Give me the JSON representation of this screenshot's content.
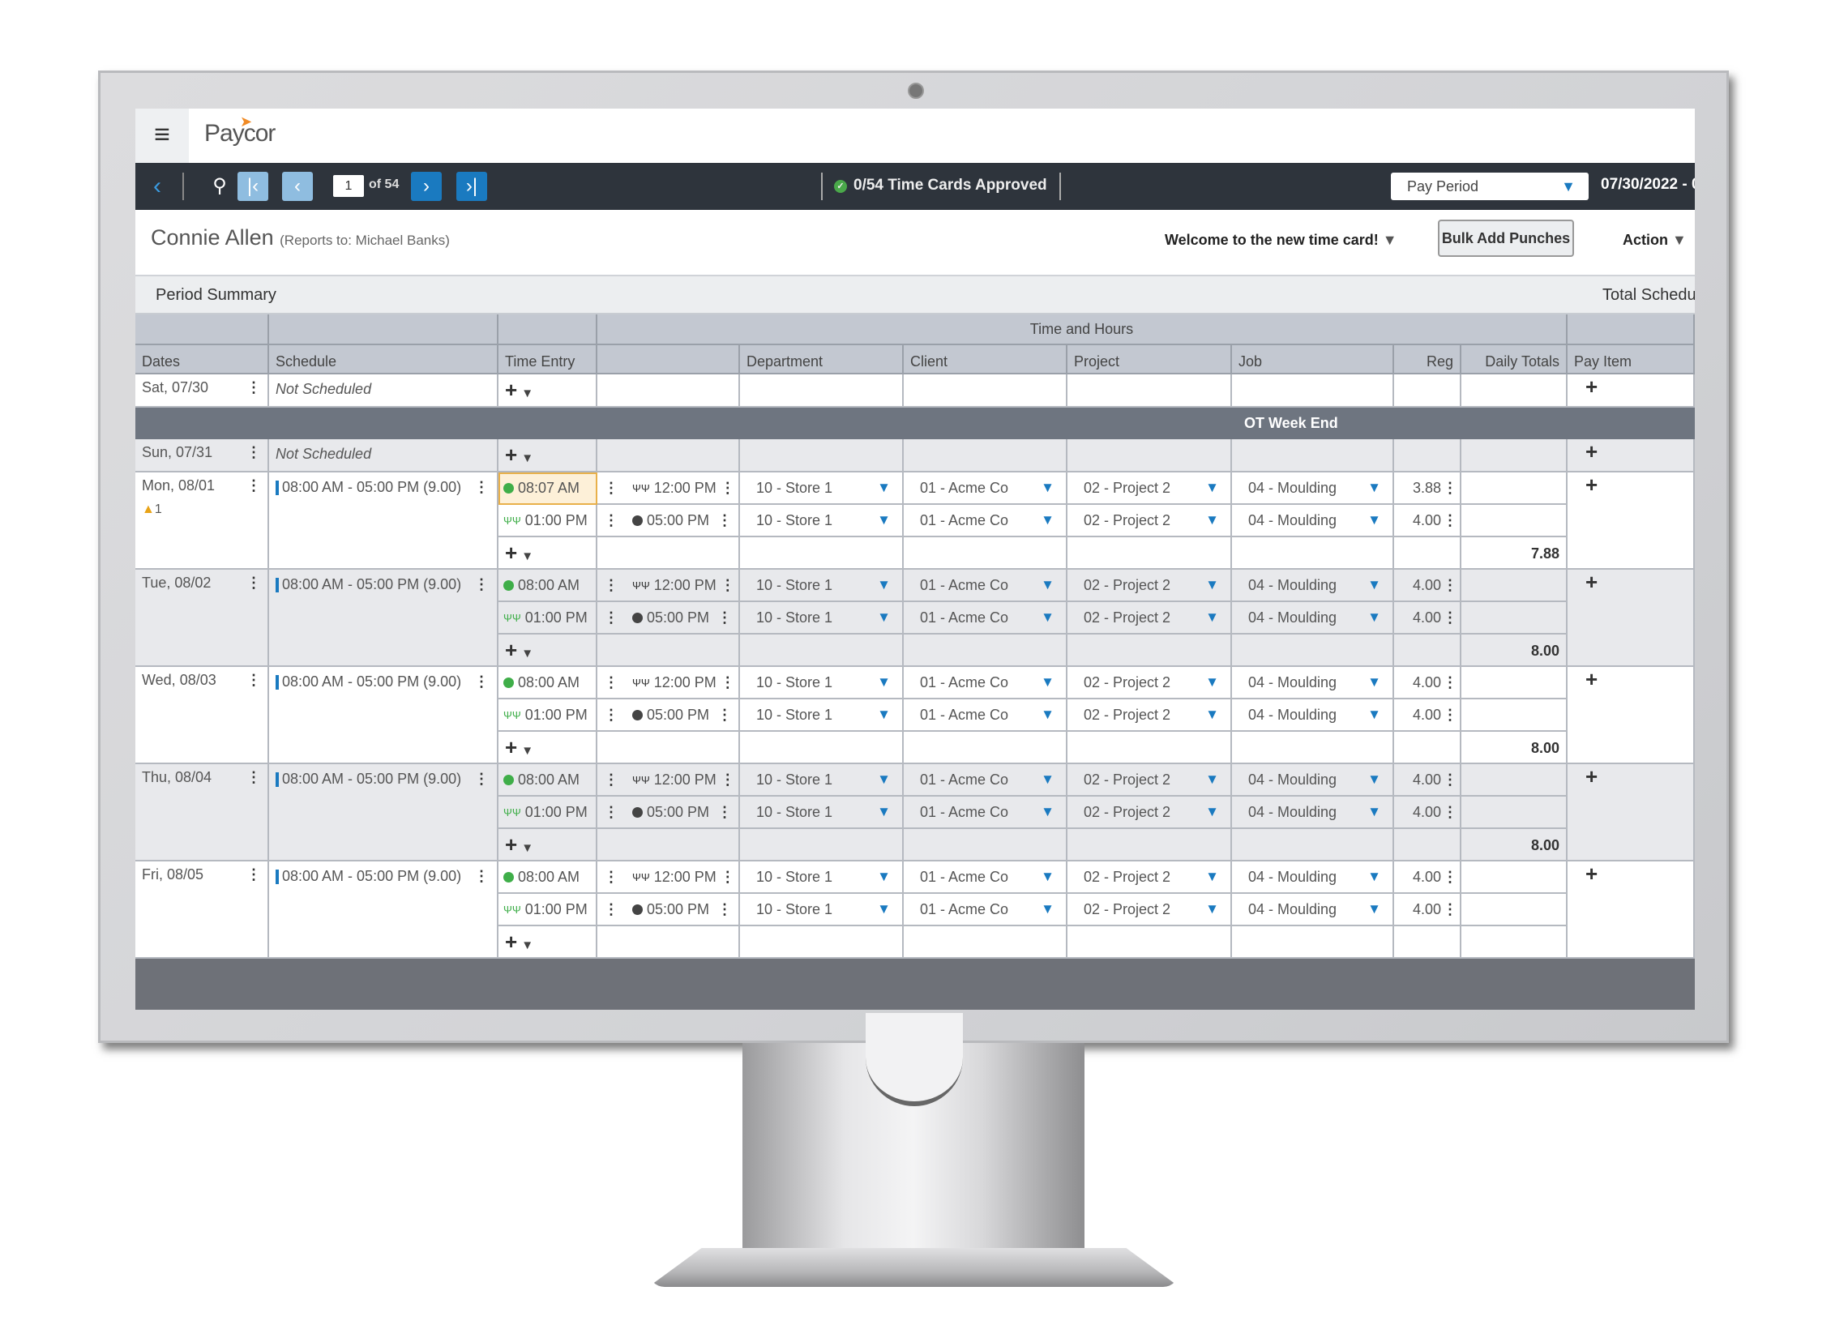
{
  "app": {
    "brand": "Paycor"
  },
  "nav": {
    "page": "1",
    "of": "of 54",
    "approved": "0/54 Time Cards Approved",
    "period_select": "Pay Period",
    "date_range": "07/30/2022 - 0"
  },
  "employee": {
    "name": "Connie Allen",
    "reports_to": "(Reports to: Michael Banks)"
  },
  "toolbar": {
    "welcome": "Welcome to the new time card!",
    "bulk_add": "Bulk Add Punches",
    "action": "Action"
  },
  "summary": {
    "label": "Period Summary",
    "total": "Total Schedu"
  },
  "table": {
    "group_header": "Time and Hours",
    "headers": [
      "Dates",
      "Schedule",
      "Time Entry",
      "",
      "Department",
      "Client",
      "Project",
      "Job",
      "Reg",
      "Daily Totals",
      "Pay Item"
    ],
    "ot_label": "OT Week End",
    "days": [
      {
        "date": "Sat, 07/30",
        "schedule": "Not Scheduled",
        "punches": [],
        "total": ""
      },
      {
        "date": "Sun, 07/31",
        "schedule": "Not Scheduled",
        "punches": [],
        "total": ""
      },
      {
        "date": "Mon, 08/01",
        "warning": "1",
        "schedule": "08:00 AM - 05:00 PM (9.00)",
        "punches": [
          {
            "in": "08:07 AM",
            "out": "12:00 PM",
            "dept": "10 - Store 1",
            "client": "01 - Acme Co",
            "project": "02 - Project 2",
            "job": "04 - Moulding",
            "reg": "3.88"
          },
          {
            "in": "01:00 PM",
            "out": "05:00 PM",
            "dept": "10 - Store 1",
            "client": "01 - Acme Co",
            "project": "02 - Project 2",
            "job": "04 - Moulding",
            "reg": "4.00"
          }
        ],
        "total": "7.88"
      },
      {
        "date": "Tue, 08/02",
        "schedule": "08:00 AM - 05:00 PM (9.00)",
        "punches": [
          {
            "in": "08:00 AM",
            "out": "12:00 PM",
            "dept": "10 - Store 1",
            "client": "01 - Acme Co",
            "project": "02 - Project 2",
            "job": "04 - Moulding",
            "reg": "4.00"
          },
          {
            "in": "01:00 PM",
            "out": "05:00 PM",
            "dept": "10 - Store 1",
            "client": "01 - Acme Co",
            "project": "02 - Project 2",
            "job": "04 - Moulding",
            "reg": "4.00"
          }
        ],
        "total": "8.00"
      },
      {
        "date": "Wed, 08/03",
        "schedule": "08:00 AM - 05:00 PM (9.00)",
        "punches": [
          {
            "in": "08:00 AM",
            "out": "12:00 PM",
            "dept": "10 - Store 1",
            "client": "01 - Acme Co",
            "project": "02 - Project 2",
            "job": "04 - Moulding",
            "reg": "4.00"
          },
          {
            "in": "01:00 PM",
            "out": "05:00 PM",
            "dept": "10 - Store 1",
            "client": "01 - Acme Co",
            "project": "02 - Project 2",
            "job": "04 - Moulding",
            "reg": "4.00"
          }
        ],
        "total": "8.00"
      },
      {
        "date": "Thu, 08/04",
        "schedule": "08:00 AM - 05:00 PM (9.00)",
        "punches": [
          {
            "in": "08:00 AM",
            "out": "12:00 PM",
            "dept": "10 - Store 1",
            "client": "01 - Acme Co",
            "project": "02 - Project 2",
            "job": "04 - Moulding",
            "reg": "4.00"
          },
          {
            "in": "01:00 PM",
            "out": "05:00 PM",
            "dept": "10 - Store 1",
            "client": "01 - Acme Co",
            "project": "02 - Project 2",
            "job": "04 - Moulding",
            "reg": "4.00"
          }
        ],
        "total": "8.00"
      },
      {
        "date": "Fri, 08/05",
        "schedule": "08:00 AM - 05:00 PM (9.00)",
        "punches": [
          {
            "in": "08:00 AM",
            "out": "12:00 PM",
            "dept": "10 - Store 1",
            "client": "01 - Acme Co",
            "project": "02 - Project 2",
            "job": "04 - Moulding",
            "reg": "4.00"
          },
          {
            "in": "01:00 PM",
            "out": "05:00 PM",
            "dept": "10 - Store 1",
            "client": "01 - Acme Co",
            "project": "02 - Project 2",
            "job": "04 - Moulding",
            "reg": "4.00"
          }
        ],
        "total": ""
      }
    ]
  },
  "colors": {
    "accent": "#1a7ac0",
    "navbar": "#2e343c",
    "brand_orange": "#f08a24",
    "clock_in": "#3fae49"
  }
}
